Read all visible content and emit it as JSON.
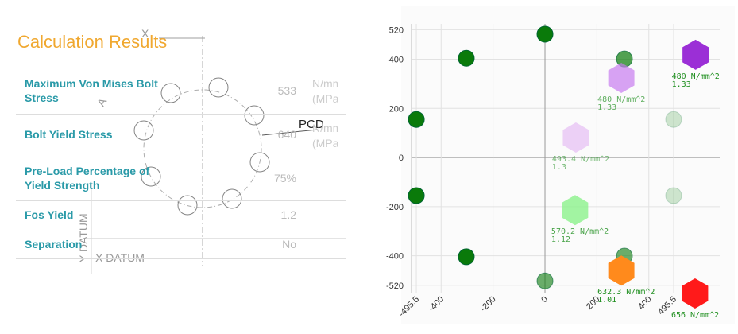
{
  "header": {
    "title": "Calculation Results"
  },
  "drawing": {
    "x_label": "X",
    "a_label": "A",
    "pcd_label": "PCD",
    "y_datum": "Y DATUM",
    "x_datum": "X DATUM"
  },
  "table": {
    "rows": [
      {
        "label": "Maximum Von Mises Bolt Stress",
        "value": "533",
        "unit": [
          "N/mm",
          "(MPa"
        ]
      },
      {
        "label": "Bolt Yield Stress",
        "value": "640",
        "unit": [
          "N/mm",
          "(MPa"
        ]
      },
      {
        "label": "Pre-Load Percentage of Yield Strength",
        "value": "75%"
      },
      {
        "label": "Fos Yield",
        "value": "1.2"
      },
      {
        "label": "Separation",
        "value": "No"
      }
    ]
  },
  "chart_data": {
    "type": "scatter",
    "xlim": [
      -514,
      673
    ],
    "ylim": [
      -647,
      544
    ],
    "xticks": [
      -495.5,
      -400,
      -200,
      0,
      200,
      400,
      495.5
    ],
    "yticks": [
      520,
      400,
      200,
      0,
      -200,
      -400,
      -520
    ],
    "grid": true,
    "series": [
      {
        "color": "#0a7a0a",
        "opacity": 1,
        "x": [
          -495.5,
          -495.5,
          -303,
          0,
          -303
        ],
        "y": [
          155,
          -155,
          404,
          502,
          -404
        ]
      },
      {
        "color": "#0a7a0a",
        "opacity": 0.6,
        "x": [
          0,
          306
        ],
        "y": [
          -502,
          -401
        ]
      },
      {
        "color": "#0a7a0a",
        "opacity": 0.7,
        "x": [
          306
        ],
        "y": [
          401
        ]
      },
      {
        "color": "#1a8a1a",
        "opacity": 0.2,
        "x": [
          495.5,
          495.5
        ],
        "y": [
          155,
          -155
        ]
      }
    ],
    "hexagons": {
      "x": [
        580,
        294,
        119,
        116,
        294,
        578
      ],
      "y": [
        418,
        324,
        81,
        -214,
        -460,
        -553
      ],
      "colors": [
        "#9b2fd6",
        "#c77cf0",
        "#e2b4f3",
        "#8cf28c",
        "#ff8a1c",
        "#ff1a1a"
      ],
      "opacities": [
        1,
        0.7,
        0.6,
        0.8,
        1,
        1
      ],
      "labels": [
        "480 N/mm^2",
        "480 N/mm^2",
        "493.4 N/mm^2",
        "570.2 N/mm^2",
        "632.3 N/mm^2",
        "656 N/mm^2"
      ],
      "sublabels": [
        "1.33",
        "1.33",
        "1.3",
        "1.12",
        "1.01",
        null
      ]
    }
  }
}
